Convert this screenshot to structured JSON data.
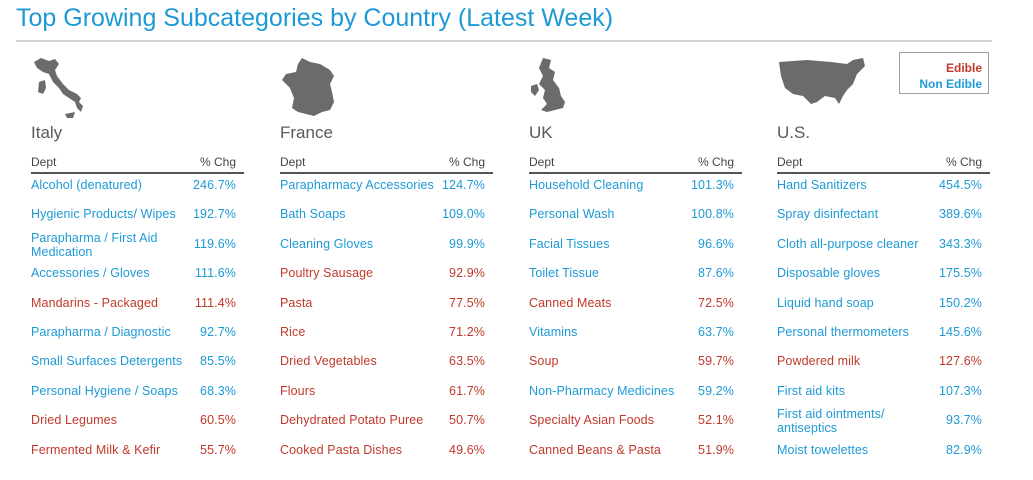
{
  "title": "Top Growing Subcategories by Country (Latest Week)",
  "colors": {
    "edible": "#c0392b",
    "non_edible": "#1d9ad6",
    "map": "#6b6b6b"
  },
  "legend": {
    "edible": "Edible",
    "non_edible": "Non Edible"
  },
  "chart_data": {
    "type": "table",
    "columns": [
      "Dept",
      "% Chg"
    ],
    "countries": [
      {
        "name": "Italy",
        "map_icon": "italy-map-icon",
        "rows": [
          {
            "dept": "Alcohol (denatured)",
            "pct": "246.7%",
            "category": "non_edible"
          },
          {
            "dept": "Hygienic Products/ Wipes",
            "pct": "192.7%",
            "category": "non_edible"
          },
          {
            "dept": "Parapharma / First Aid Medication",
            "pct": "119.6%",
            "category": "non_edible"
          },
          {
            "dept": "Accessories / Gloves",
            "pct": "111.6%",
            "category": "non_edible"
          },
          {
            "dept": "Mandarins - Packaged",
            "pct": "111.4%",
            "category": "edible"
          },
          {
            "dept": "Parapharma / Diagnostic",
            "pct": "92.7%",
            "category": "non_edible"
          },
          {
            "dept": "Small Surfaces Detergents",
            "pct": "85.5%",
            "category": "non_edible"
          },
          {
            "dept": "Personal Hygiene / Soaps",
            "pct": "68.3%",
            "category": "non_edible"
          },
          {
            "dept": "Dried Legumes",
            "pct": "60.5%",
            "category": "edible"
          },
          {
            "dept": "Fermented Milk & Kefir",
            "pct": "55.7%",
            "category": "edible"
          }
        ]
      },
      {
        "name": "France",
        "map_icon": "france-map-icon",
        "rows": [
          {
            "dept": "Parapharmacy Accessories",
            "pct": "124.7%",
            "category": "non_edible"
          },
          {
            "dept": "Bath Soaps",
            "pct": "109.0%",
            "category": "non_edible"
          },
          {
            "dept": "Cleaning Gloves",
            "pct": "99.9%",
            "category": "non_edible"
          },
          {
            "dept": "Poultry Sausage",
            "pct": "92.9%",
            "category": "edible"
          },
          {
            "dept": "Pasta",
            "pct": "77.5%",
            "category": "edible"
          },
          {
            "dept": "Rice",
            "pct": "71.2%",
            "category": "edible"
          },
          {
            "dept": "Dried Vegetables",
            "pct": "63.5%",
            "category": "edible"
          },
          {
            "dept": "Flours",
            "pct": "61.7%",
            "category": "edible"
          },
          {
            "dept": "Dehydrated Potato Puree",
            "pct": "50.7%",
            "category": "edible"
          },
          {
            "dept": "Cooked Pasta Dishes",
            "pct": "49.6%",
            "category": "edible"
          }
        ]
      },
      {
        "name": "UK",
        "map_icon": "uk-map-icon",
        "rows": [
          {
            "dept": "Household Cleaning",
            "pct": "101.3%",
            "category": "non_edible"
          },
          {
            "dept": "Personal Wash",
            "pct": "100.8%",
            "category": "non_edible"
          },
          {
            "dept": "Facial Tissues",
            "pct": "96.6%",
            "category": "non_edible"
          },
          {
            "dept": "Toilet Tissue",
            "pct": "87.6%",
            "category": "non_edible"
          },
          {
            "dept": "Canned Meats",
            "pct": "72.5%",
            "category": "edible"
          },
          {
            "dept": "Vitamins",
            "pct": "63.7%",
            "category": "non_edible"
          },
          {
            "dept": "Soup",
            "pct": "59.7%",
            "category": "edible"
          },
          {
            "dept": "Non-Pharmacy Medicines",
            "pct": "59.2%",
            "category": "non_edible"
          },
          {
            "dept": "Specialty Asian Foods",
            "pct": "52.1%",
            "category": "edible"
          },
          {
            "dept": "Canned Beans & Pasta",
            "pct": "51.9%",
            "category": "edible"
          }
        ]
      },
      {
        "name": "U.S.",
        "map_icon": "usa-map-icon",
        "rows": [
          {
            "dept": "Hand Sanitizers",
            "pct": "454.5%",
            "category": "non_edible"
          },
          {
            "dept": "Spray disinfectant",
            "pct": "389.6%",
            "category": "non_edible"
          },
          {
            "dept": "Cloth all-purpose cleaner",
            "pct": "343.3%",
            "category": "non_edible"
          },
          {
            "dept": "Disposable gloves",
            "pct": "175.5%",
            "category": "non_edible"
          },
          {
            "dept": "Liquid hand soap",
            "pct": "150.2%",
            "category": "non_edible"
          },
          {
            "dept": "Personal thermometers",
            "pct": "145.6%",
            "category": "non_edible"
          },
          {
            "dept": "Powdered milk",
            "pct": "127.6%",
            "category": "edible"
          },
          {
            "dept": "First aid kits",
            "pct": "107.3%",
            "category": "non_edible"
          },
          {
            "dept": "First aid ointments/ antiseptics",
            "pct": "93.7%",
            "category": "non_edible"
          },
          {
            "dept": "Moist towelettes",
            "pct": "82.9%",
            "category": "non_edible"
          }
        ]
      }
    ]
  }
}
